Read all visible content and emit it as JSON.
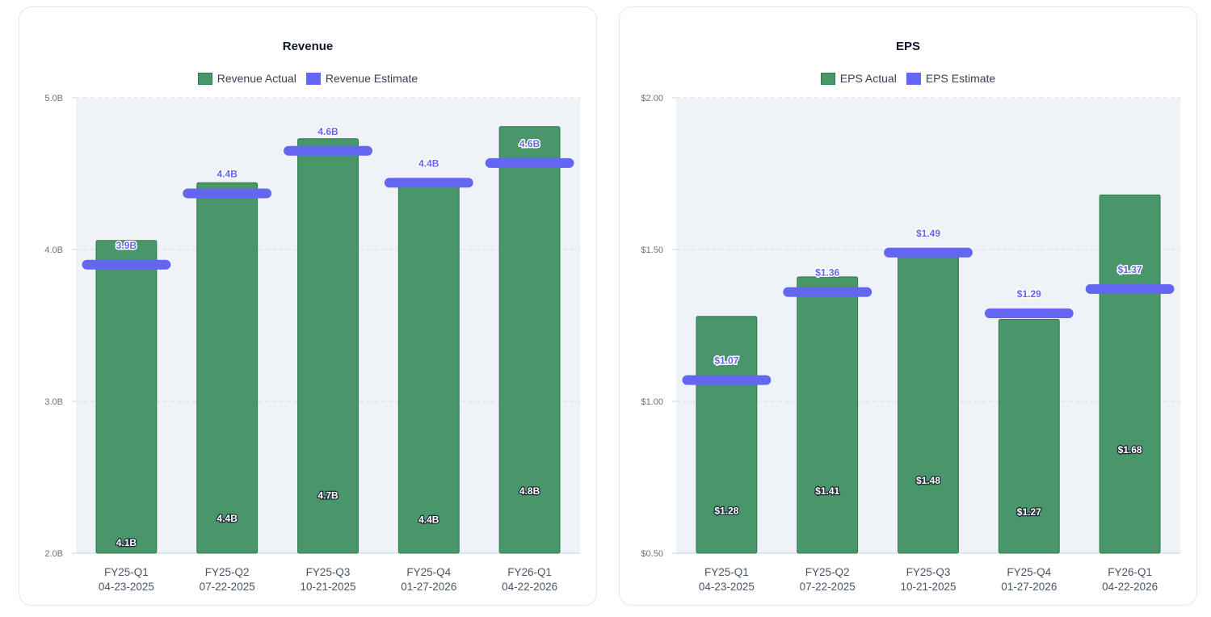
{
  "colors": {
    "actual": "#48966a",
    "actual_border": "#2f7a4c",
    "estimate": "#6366f1",
    "plot_bg": "#eff3f8",
    "grid": "#d9dee6",
    "axis": "#c9d3df"
  },
  "chart_data": [
    {
      "id": "revenue",
      "type": "bar",
      "title": "Revenue",
      "legend": [
        "Revenue Actual",
        "Revenue Estimate"
      ],
      "categories": [
        [
          "FY25-Q1",
          "04-23-2025"
        ],
        [
          "FY25-Q2",
          "07-22-2025"
        ],
        [
          "FY25-Q3",
          "10-21-2025"
        ],
        [
          "FY25-Q4",
          "01-27-2026"
        ],
        [
          "FY26-Q1",
          "04-22-2026"
        ]
      ],
      "ylim": [
        2.0,
        5.0
      ],
      "yticks": [
        2.0,
        3.0,
        4.0,
        5.0
      ],
      "ytick_labels": [
        "2.0B",
        "3.0B",
        "4.0B",
        "5.0B"
      ],
      "grid": true,
      "series": [
        {
          "name": "Revenue Actual",
          "kind": "bar",
          "values": [
            4.06,
            4.44,
            4.73,
            4.42,
            4.81
          ],
          "labels": [
            "4.1B",
            "4.4B",
            "4.7B",
            "4.4B",
            "4.8B"
          ],
          "label_values": [
            2.07,
            2.23,
            2.38,
            2.22,
            2.41
          ]
        },
        {
          "name": "Revenue Estimate",
          "kind": "marker",
          "values": [
            3.9,
            4.37,
            4.65,
            4.44,
            4.57
          ],
          "labels": [
            "3.9B",
            "4.4B",
            "4.6B",
            "4.4B",
            "4.6B"
          ]
        }
      ]
    },
    {
      "id": "eps",
      "type": "bar",
      "title": "EPS",
      "legend": [
        "EPS Actual",
        "EPS Estimate"
      ],
      "categories": [
        [
          "FY25-Q1",
          "04-23-2025"
        ],
        [
          "FY25-Q2",
          "07-22-2025"
        ],
        [
          "FY25-Q3",
          "10-21-2025"
        ],
        [
          "FY25-Q4",
          "01-27-2026"
        ],
        [
          "FY26-Q1",
          "04-22-2026"
        ]
      ],
      "ylim": [
        0.5,
        2.0
      ],
      "yticks": [
        0.5,
        1.0,
        1.5,
        2.0
      ],
      "ytick_labels": [
        "$0.50",
        "$1.00",
        "$1.50",
        "$2.00"
      ],
      "grid": true,
      "series": [
        {
          "name": "EPS Actual",
          "kind": "bar",
          "values": [
            1.28,
            1.41,
            1.48,
            1.27,
            1.68
          ],
          "labels": [
            "$1.28",
            "$1.41",
            "$1.48",
            "$1.27",
            "$1.68"
          ],
          "label_values": [
            0.64,
            0.705,
            0.74,
            0.635,
            0.84
          ]
        },
        {
          "name": "EPS Estimate",
          "kind": "marker",
          "values": [
            1.07,
            1.36,
            1.49,
            1.29,
            1.37
          ],
          "labels": [
            "$1.07",
            "$1.36",
            "$1.49",
            "$1.29",
            "$1.37"
          ]
        }
      ]
    }
  ]
}
